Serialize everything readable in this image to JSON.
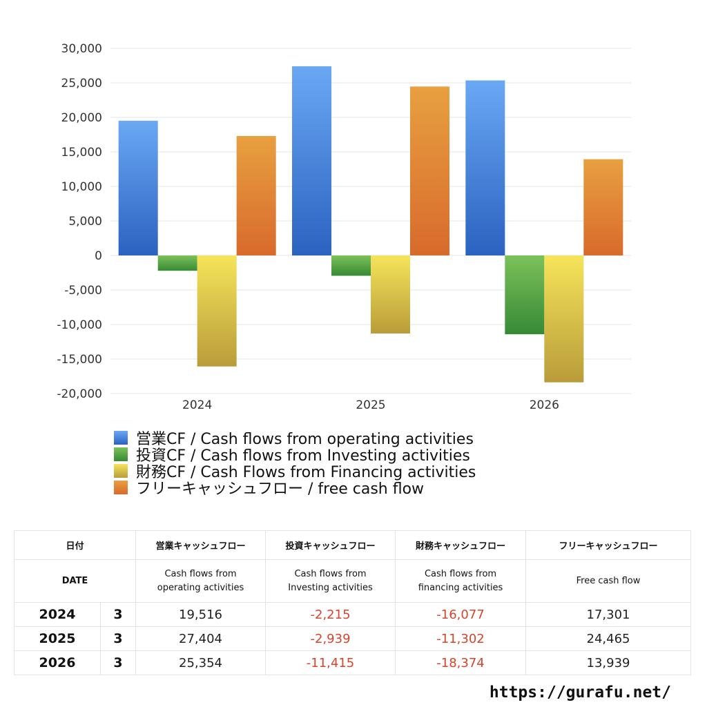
{
  "chart_data": {
    "type": "bar",
    "categories": [
      "2024",
      "2025",
      "2026"
    ],
    "series": [
      {
        "name": "営業CF / Cash flows from operating activities",
        "values": [
          19516,
          27404,
          25354
        ],
        "color_top": "#6aa8f4",
        "color_bottom": "#2b62c0"
      },
      {
        "name": "投資CF / Cash flows from Investing activities",
        "values": [
          -2215,
          -2939,
          -11415
        ],
        "color_top": "#7cc15a",
        "color_bottom": "#378a35"
      },
      {
        "name": "財務CF / Cash Flows from Financing activities",
        "values": [
          -16077,
          -11302,
          -18374
        ],
        "color_top": "#f6e45a",
        "color_bottom": "#b99c3a"
      },
      {
        "name": "フリーキャッシュフロー / free cash flow",
        "values": [
          17301,
          24465,
          13939
        ],
        "color_top": "#e8a040",
        "color_bottom": "#d86a2c"
      }
    ],
    "ylim": [
      -20000,
      30000
    ],
    "yticks": [
      30000,
      25000,
      20000,
      15000,
      10000,
      5000,
      0,
      -5000,
      -10000,
      -15000,
      -20000
    ],
    "ytick_labels": [
      "30,000",
      "25,000",
      "20,000",
      "15,000",
      "10,000",
      "5,000",
      "0",
      "-5,000",
      "-10,000",
      "-15,000",
      "-20,000"
    ],
    "grid": true,
    "legend_position": "bottom-left"
  },
  "table": {
    "headers": [
      "日付",
      "営業キャッシュフロー",
      "投資キャッシュフロー",
      "財務キャッシュフロー",
      "フリーキャッシュフロー"
    ],
    "subheaders": {
      "date": "DATE",
      "operating": [
        "Cash flows from",
        "operating activities"
      ],
      "investing": [
        "Cash flows from",
        "Investing activities"
      ],
      "financing": [
        "Cash flows from",
        "financing activities"
      ],
      "free": "Free cash flow"
    },
    "rows": [
      {
        "year": "2024",
        "month": "3",
        "operating": "19,516",
        "investing": "-2,215",
        "financing": "-16,077",
        "free": "17,301"
      },
      {
        "year": "2025",
        "month": "3",
        "operating": "27,404",
        "investing": "-2,939",
        "financing": "-11,302",
        "free": "24,465"
      },
      {
        "year": "2026",
        "month": "3",
        "operating": "25,354",
        "investing": "-11,415",
        "financing": "-18,374",
        "free": "13,939"
      }
    ],
    "negative_color": "#d9432a"
  },
  "footer": {
    "url": "https://gurafu.net/"
  }
}
